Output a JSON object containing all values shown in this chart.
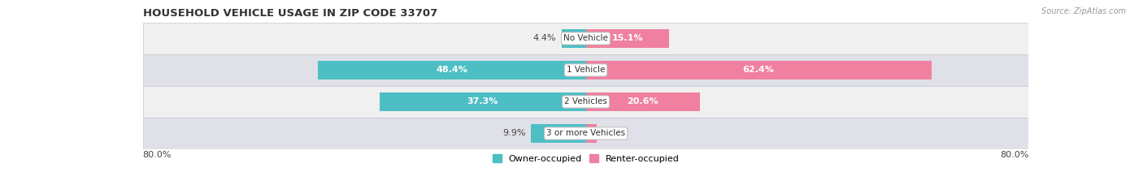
{
  "title": "HOUSEHOLD VEHICLE USAGE IN ZIP CODE 33707",
  "source": "Source: ZipAtlas.com",
  "categories": [
    "No Vehicle",
    "1 Vehicle",
    "2 Vehicles",
    "3 or more Vehicles"
  ],
  "owner_values": [
    4.4,
    48.4,
    37.3,
    9.9
  ],
  "renter_values": [
    15.1,
    62.4,
    20.6,
    1.9
  ],
  "owner_color": "#4dbfc4",
  "renter_color": "#f080a0",
  "row_colors": [
    "#f0f0f0",
    "#e0e0e8",
    "#f0f0f0",
    "#e0e0e8"
  ],
  "axis_min": -80.0,
  "axis_max": 80.0,
  "axis_label_left": "80.0%",
  "axis_label_right": "80.0%",
  "bar_height": 0.58,
  "white_label_threshold": 15,
  "title_fontsize": 9.5,
  "bar_label_fontsize": 8,
  "cat_label_fontsize": 7.5,
  "legend_fontsize": 8,
  "source_fontsize": 7
}
